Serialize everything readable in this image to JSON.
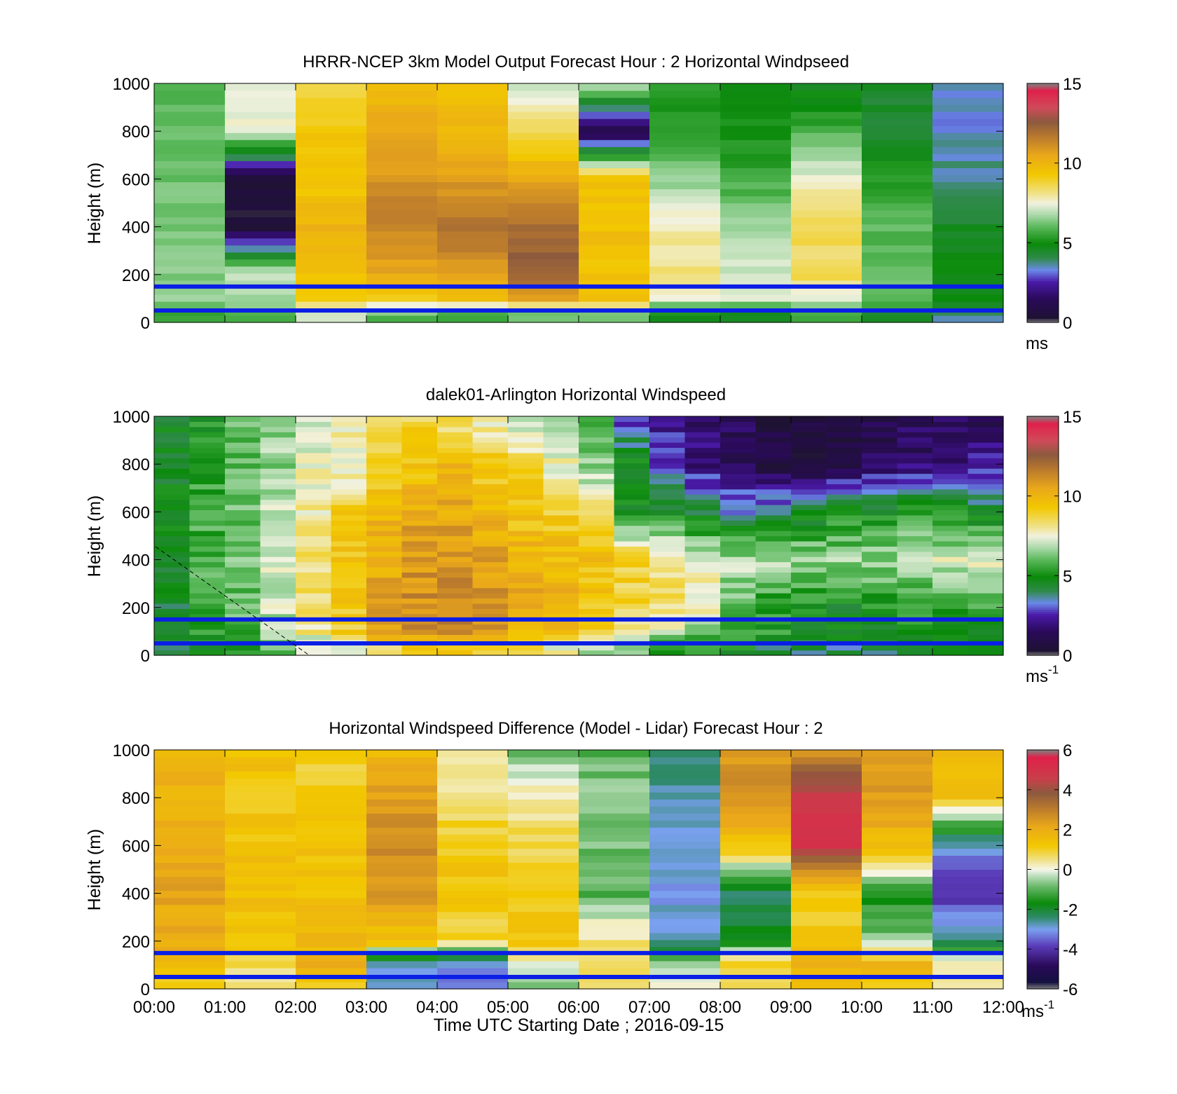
{
  "figure": {
    "xlabel": "Time UTC  Starting Date ; 2016-09-15",
    "x_ticks": [
      "00:00",
      "01:00",
      "02:00",
      "03:00",
      "04:00",
      "05:00",
      "06:00",
      "07:00",
      "08:00",
      "09:00",
      "10:00",
      "11:00",
      "12:00"
    ],
    "y_ticks": [
      "0",
      "200",
      "400",
      "600",
      "800",
      "1000"
    ],
    "ylabel": "Height (m)"
  },
  "chart_data": [
    {
      "type": "heatmap",
      "title": "HRRR-NCEP 3km Model Output   Forecast Hour : 2 Horizontal Windpseed",
      "ylabel": "Height (m)",
      "xlim": [
        "00:00",
        "12:00"
      ],
      "ylim": [
        0,
        1000
      ],
      "colorbar": {
        "min": 0,
        "max": 15,
        "ticks": [
          "0",
          "5",
          "10",
          "15"
        ],
        "unit": "ms",
        "unit_sup": ""
      },
      "x_bins": [
        "00:00",
        "01:00",
        "02:00",
        "03:00",
        "04:00",
        "05:00",
        "06:00",
        "07:00",
        "08:00",
        "09:00",
        "10:00",
        "11:00"
      ],
      "y_levels": [
        1000,
        800,
        600,
        400,
        200,
        100,
        40
      ],
      "values": [
        [
          6.0,
          7.5,
          8.5,
          9.8,
          9.5,
          7.0,
          7.0,
          5.2,
          4.8,
          4.5,
          4.4,
          3.3
        ],
        [
          6.0,
          7.6,
          9.3,
          10.4,
          10.0,
          8.6,
          0.8,
          5.5,
          5.0,
          5.8,
          4.5,
          3.4
        ],
        [
          6.2,
          0.5,
          9.4,
          11.0,
          10.8,
          10.5,
          9.4,
          6.5,
          5.6,
          7.5,
          5.4,
          3.8
        ],
        [
          6.3,
          0.5,
          10.0,
          11.5,
          11.8,
          12.0,
          9.6,
          7.8,
          6.8,
          8.4,
          6.0,
          4.6
        ],
        [
          6.4,
          7.2,
          9.7,
          10.4,
          10.8,
          12.5,
          9.5,
          8.2,
          7.2,
          8.6,
          6.0,
          4.9
        ],
        [
          6.4,
          6.6,
          9.0,
          9.2,
          9.6,
          10.4,
          9.4,
          7.3,
          7.2,
          7.5,
          6.0,
          5.0
        ],
        [
          5.5,
          5.8,
          7.0,
          6.0,
          5.5,
          6.0,
          6.2,
          5.0,
          4.8,
          5.5,
          4.6,
          3.8
        ]
      ],
      "reference_lines_m": [
        150,
        50
      ]
    },
    {
      "type": "heatmap",
      "title": "dalek01-Arlington  Horizontal Windspeed",
      "ylabel": "Height (m)",
      "xlim": [
        "00:00",
        "12:00"
      ],
      "ylim": [
        0,
        1000
      ],
      "colorbar": {
        "min": 0,
        "max": 15,
        "ticks": [
          "0",
          "5",
          "10",
          "15"
        ],
        "unit": "ms",
        "unit_sup": "-1"
      },
      "x_bins": [
        "00:00",
        "00:30",
        "01:00",
        "01:30",
        "02:00",
        "02:30",
        "03:00",
        "03:30",
        "04:00",
        "04:30",
        "05:00",
        "05:30",
        "06:00",
        "06:30",
        "07:00",
        "07:30",
        "08:00",
        "08:30",
        "09:00",
        "09:30",
        "10:00",
        "10:30",
        "11:00",
        "11:30"
      ],
      "y_levels": [
        1000,
        800,
        600,
        400,
        200,
        100,
        40
      ],
      "values": [
        [
          4.8,
          5.2,
          6.0,
          6.4,
          7.4,
          7.8,
          8.6,
          8.8,
          8.2,
          7.6,
          7.0,
          6.3,
          5.6,
          2.8,
          2.2,
          1.8,
          1.3,
          1.0,
          0.9,
          0.8,
          1.2,
          1.5,
          1.3,
          1.0
        ],
        [
          4.6,
          5.4,
          6.0,
          6.6,
          7.5,
          7.4,
          9.0,
          9.4,
          9.8,
          9.2,
          8.6,
          7.6,
          6.4,
          5.0,
          3.0,
          2.0,
          1.5,
          0.7,
          0.8,
          1.0,
          1.4,
          1.6,
          1.8,
          2.4
        ],
        [
          4.6,
          5.6,
          6.2,
          7.0,
          7.8,
          9.0,
          10.0,
          10.5,
          10.5,
          9.8,
          9.4,
          9.0,
          8.4,
          4.8,
          4.6,
          4.2,
          3.6,
          4.0,
          4.4,
          4.8,
          5.0,
          5.4,
          5.0,
          4.6
        ],
        [
          4.6,
          5.8,
          6.2,
          7.2,
          8.2,
          9.4,
          10.4,
          11.0,
          11.0,
          10.6,
          10.2,
          9.8,
          9.6,
          9.0,
          8.4,
          7.5,
          7.0,
          6.8,
          6.8,
          6.6,
          6.6,
          7.0,
          7.2,
          7.4
        ],
        [
          4.5,
          5.6,
          6.0,
          7.0,
          8.2,
          9.2,
          10.6,
          11.2,
          11.5,
          11.2,
          10.6,
          10.0,
          9.4,
          8.8,
          8.4,
          7.6,
          6.2,
          5.2,
          5.0,
          4.8,
          5.0,
          5.4,
          5.6,
          5.8
        ],
        [
          4.4,
          5.2,
          5.8,
          6.8,
          8.0,
          9.0,
          10.4,
          11.0,
          11.6,
          11.0,
          10.2,
          9.6,
          8.8,
          7.8,
          7.0,
          6.4,
          5.8,
          5.4,
          5.0,
          4.8,
          4.8,
          5.0,
          5.0,
          5.2
        ],
        [
          4.4,
          4.8,
          5.4,
          6.0,
          6.8,
          7.4,
          8.8,
          9.4,
          9.6,
          9.0,
          8.4,
          7.6,
          7.0,
          6.2,
          5.6,
          5.2,
          4.8,
          4.4,
          4.2,
          4.0,
          4.2,
          4.2,
          4.4,
          4.4
        ]
      ],
      "reference_lines_m": [
        150,
        50
      ]
    },
    {
      "type": "heatmap",
      "title": "Horizontal Windspeed Difference (Model - Lidar) Forecast Hour : 2",
      "ylabel": "Height (m)",
      "xlabel": "Time UTC  Starting Date ; 2016-09-15",
      "xlim": [
        "00:00",
        "12:00"
      ],
      "ylim": [
        0,
        1000
      ],
      "colorbar": {
        "min": -6,
        "max": 6,
        "ticks": [
          "-6",
          "-4",
          "-2",
          "0",
          "2",
          "4",
          "6"
        ],
        "unit": "ms",
        "unit_sup": "-1"
      },
      "x_bins": [
        "00:00",
        "01:00",
        "02:00",
        "03:00",
        "04:00",
        "05:00",
        "06:00",
        "07:00",
        "08:00",
        "09:00",
        "10:00",
        "11:00"
      ],
      "y_levels": [
        1000,
        800,
        600,
        400,
        200,
        100,
        40
      ],
      "values": [
        [
          1.8,
          1.5,
          0.9,
          1.6,
          0.1,
          -0.8,
          -1.0,
          -2.2,
          2.4,
          2.6,
          2.3,
          1.8
        ],
        [
          1.9,
          1.2,
          1.2,
          2.4,
          0.6,
          0.3,
          -0.6,
          -2.6,
          2.6,
          4.8,
          2.5,
          1.3
        ],
        [
          2.0,
          1.4,
          1.3,
          2.8,
          1.2,
          0.8,
          -0.8,
          -2.8,
          1.4,
          4.9,
          1.6,
          -3.0
        ],
        [
          2.2,
          1.5,
          1.4,
          2.4,
          1.4,
          1.2,
          -1.0,
          -3.1,
          -2.6,
          1.0,
          -1.6,
          -4.0
        ],
        [
          2.0,
          1.3,
          1.6,
          1.4,
          0.8,
          1.2,
          0.6,
          -2.6,
          -1.6,
          1.3,
          -0.6,
          -2.4
        ],
        [
          1.8,
          0.8,
          1.9,
          -2.8,
          -3.2,
          -0.2,
          0.9,
          -0.6,
          1.0,
          2.0,
          1.8,
          0.6
        ],
        [
          1.2,
          0.4,
          1.2,
          -3.0,
          -3.4,
          -0.6,
          0.5,
          0.2,
          0.8,
          1.4,
          1.2,
          0.4
        ]
      ],
      "reference_lines_m": [
        150,
        50
      ]
    }
  ]
}
